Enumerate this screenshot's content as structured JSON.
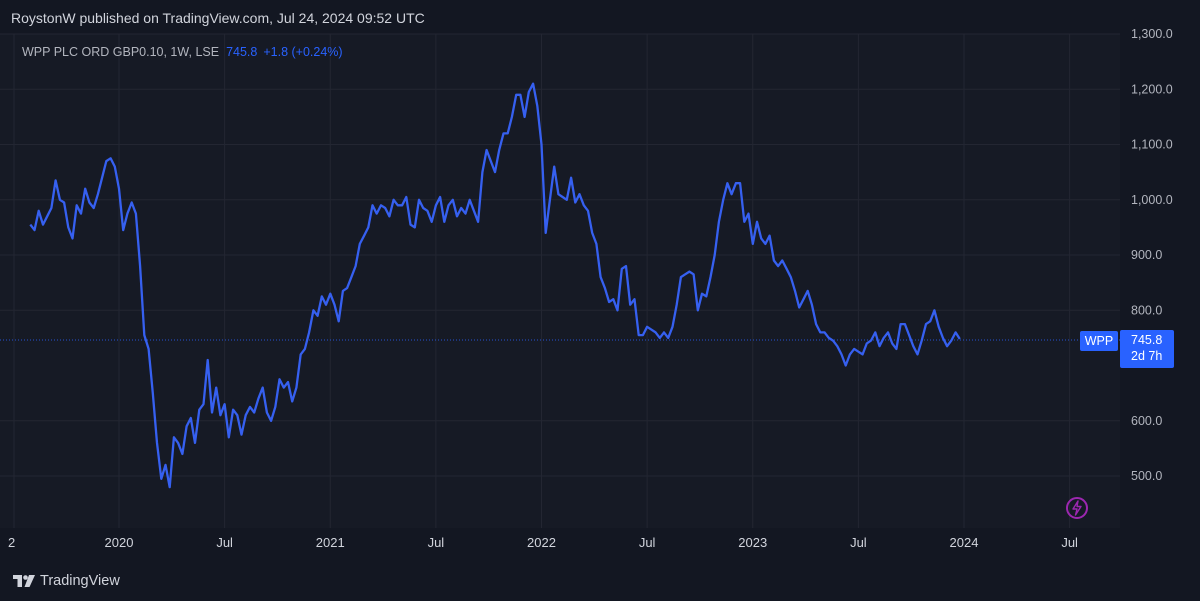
{
  "header": {
    "published_text": "RoystonW published on TradingView.com, Jul 24, 2024 09:52 UTC"
  },
  "legend": {
    "symbol_text": "WPP PLC ORD GBP0.10, 1W, LSE",
    "last_value": "745.8",
    "change_text": "+1.8 (+0.24%)"
  },
  "price_label": {
    "ticker": "WPP",
    "value": "745.8",
    "countdown": "2d 7h"
  },
  "footer": {
    "logo_text": "TradingView"
  },
  "colors": {
    "background": "#131722",
    "line": "#3660f0",
    "accent": "#2962ff"
  },
  "chart_data": {
    "type": "line",
    "ylim": [
      430,
      1300
    ],
    "y_ticks": [
      "1,300.0",
      "1,200.0",
      "1,100.0",
      "1,000.0",
      "900.0",
      "800.0",
      "600.0",
      "500.0"
    ],
    "x_ticks": [
      "2",
      "2020",
      "Jul",
      "2021",
      "Jul",
      "2022",
      "Jul",
      "2023",
      "Jul",
      "2024",
      "Jul"
    ],
    "grid": true,
    "last_price": 745.8,
    "series": [
      {
        "values": [
          [
            2019.58,
            955
          ],
          [
            2019.6,
            945
          ],
          [
            2019.62,
            980
          ],
          [
            2019.64,
            955
          ],
          [
            2019.66,
            970
          ],
          [
            2019.68,
            985
          ],
          [
            2019.7,
            1035
          ],
          [
            2019.72,
            1000
          ],
          [
            2019.74,
            995
          ],
          [
            2019.76,
            950
          ],
          [
            2019.78,
            930
          ],
          [
            2019.8,
            990
          ],
          [
            2019.82,
            975
          ],
          [
            2019.84,
            1020
          ],
          [
            2019.86,
            995
          ],
          [
            2019.88,
            985
          ],
          [
            2019.9,
            1010
          ],
          [
            2019.92,
            1040
          ],
          [
            2019.94,
            1070
          ],
          [
            2019.96,
            1075
          ],
          [
            2019.98,
            1060
          ],
          [
            2020.0,
            1020
          ],
          [
            2020.02,
            945
          ],
          [
            2020.04,
            975
          ],
          [
            2020.06,
            995
          ],
          [
            2020.08,
            975
          ],
          [
            2020.1,
            880
          ],
          [
            2020.12,
            755
          ],
          [
            2020.14,
            730
          ],
          [
            2020.16,
            650
          ],
          [
            2020.18,
            560
          ],
          [
            2020.2,
            495
          ],
          [
            2020.22,
            520
          ],
          [
            2020.24,
            480
          ],
          [
            2020.26,
            570
          ],
          [
            2020.28,
            560
          ],
          [
            2020.3,
            540
          ],
          [
            2020.32,
            590
          ],
          [
            2020.34,
            605
          ],
          [
            2020.36,
            560
          ],
          [
            2020.38,
            620
          ],
          [
            2020.4,
            630
          ],
          [
            2020.42,
            710
          ],
          [
            2020.44,
            615
          ],
          [
            2020.46,
            660
          ],
          [
            2020.48,
            610
          ],
          [
            2020.5,
            630
          ],
          [
            2020.52,
            570
          ],
          [
            2020.54,
            620
          ],
          [
            2020.56,
            610
          ],
          [
            2020.58,
            575
          ],
          [
            2020.6,
            610
          ],
          [
            2020.62,
            625
          ],
          [
            2020.64,
            615
          ],
          [
            2020.66,
            640
          ],
          [
            2020.68,
            660
          ],
          [
            2020.7,
            615
          ],
          [
            2020.72,
            600
          ],
          [
            2020.74,
            625
          ],
          [
            2020.76,
            675
          ],
          [
            2020.78,
            660
          ],
          [
            2020.8,
            670
          ],
          [
            2020.82,
            635
          ],
          [
            2020.84,
            660
          ],
          [
            2020.86,
            720
          ],
          [
            2020.88,
            730
          ],
          [
            2020.9,
            760
          ],
          [
            2020.92,
            800
          ],
          [
            2020.94,
            790
          ],
          [
            2020.96,
            825
          ],
          [
            2020.98,
            810
          ],
          [
            2021.0,
            830
          ],
          [
            2021.02,
            810
          ],
          [
            2021.04,
            780
          ],
          [
            2021.06,
            835
          ],
          [
            2021.08,
            840
          ],
          [
            2021.1,
            860
          ],
          [
            2021.12,
            880
          ],
          [
            2021.14,
            920
          ],
          [
            2021.16,
            935
          ],
          [
            2021.18,
            950
          ],
          [
            2021.2,
            990
          ],
          [
            2021.22,
            975
          ],
          [
            2021.24,
            990
          ],
          [
            2021.26,
            985
          ],
          [
            2021.28,
            970
          ],
          [
            2021.3,
            1000
          ],
          [
            2021.32,
            990
          ],
          [
            2021.34,
            990
          ],
          [
            2021.36,
            1005
          ],
          [
            2021.38,
            955
          ],
          [
            2021.4,
            950
          ],
          [
            2021.42,
            1000
          ],
          [
            2021.44,
            985
          ],
          [
            2021.46,
            980
          ],
          [
            2021.48,
            960
          ],
          [
            2021.5,
            990
          ],
          [
            2021.52,
            1005
          ],
          [
            2021.54,
            960
          ],
          [
            2021.56,
            990
          ],
          [
            2021.58,
            1000
          ],
          [
            2021.6,
            970
          ],
          [
            2021.62,
            985
          ],
          [
            2021.64,
            975
          ],
          [
            2021.66,
            1000
          ],
          [
            2021.68,
            980
          ],
          [
            2021.7,
            960
          ],
          [
            2021.72,
            1050
          ],
          [
            2021.74,
            1090
          ],
          [
            2021.76,
            1070
          ],
          [
            2021.78,
            1050
          ],
          [
            2021.8,
            1090
          ],
          [
            2021.82,
            1120
          ],
          [
            2021.84,
            1120
          ],
          [
            2021.86,
            1150
          ],
          [
            2021.88,
            1190
          ],
          [
            2021.9,
            1190
          ],
          [
            2021.92,
            1150
          ],
          [
            2021.94,
            1195
          ],
          [
            2021.96,
            1210
          ],
          [
            2021.98,
            1170
          ],
          [
            2022.0,
            1100
          ],
          [
            2022.02,
            940
          ],
          [
            2022.04,
            1000
          ],
          [
            2022.06,
            1060
          ],
          [
            2022.08,
            1010
          ],
          [
            2022.1,
            1005
          ],
          [
            2022.12,
            1000
          ],
          [
            2022.14,
            1040
          ],
          [
            2022.16,
            995
          ],
          [
            2022.18,
            1010
          ],
          [
            2022.2,
            990
          ],
          [
            2022.22,
            980
          ],
          [
            2022.24,
            940
          ],
          [
            2022.26,
            920
          ],
          [
            2022.28,
            860
          ],
          [
            2022.3,
            840
          ],
          [
            2022.32,
            815
          ],
          [
            2022.34,
            820
          ],
          [
            2022.36,
            800
          ],
          [
            2022.38,
            875
          ],
          [
            2022.4,
            880
          ],
          [
            2022.42,
            810
          ],
          [
            2022.44,
            820
          ],
          [
            2022.46,
            755
          ],
          [
            2022.48,
            755
          ],
          [
            2022.5,
            770
          ],
          [
            2022.52,
            765
          ],
          [
            2022.54,
            760
          ],
          [
            2022.56,
            750
          ],
          [
            2022.58,
            760
          ],
          [
            2022.6,
            750
          ],
          [
            2022.62,
            770
          ],
          [
            2022.64,
            810
          ],
          [
            2022.66,
            860
          ],
          [
            2022.68,
            865
          ],
          [
            2022.7,
            870
          ],
          [
            2022.72,
            865
          ],
          [
            2022.74,
            800
          ],
          [
            2022.76,
            830
          ],
          [
            2022.78,
            825
          ],
          [
            2022.8,
            860
          ],
          [
            2022.82,
            900
          ],
          [
            2022.84,
            960
          ],
          [
            2022.86,
            1000
          ],
          [
            2022.88,
            1030
          ],
          [
            2022.9,
            1010
          ],
          [
            2022.92,
            1030
          ],
          [
            2022.94,
            1030
          ],
          [
            2022.96,
            960
          ],
          [
            2022.98,
            975
          ],
          [
            2023.0,
            920
          ],
          [
            2023.02,
            960
          ],
          [
            2023.04,
            930
          ],
          [
            2023.06,
            920
          ],
          [
            2023.08,
            935
          ],
          [
            2023.1,
            890
          ],
          [
            2023.12,
            880
          ],
          [
            2023.14,
            890
          ],
          [
            2023.16,
            875
          ],
          [
            2023.18,
            860
          ],
          [
            2023.2,
            835
          ],
          [
            2023.22,
            805
          ],
          [
            2023.24,
            820
          ],
          [
            2023.26,
            835
          ],
          [
            2023.28,
            810
          ],
          [
            2023.3,
            775
          ],
          [
            2023.32,
            760
          ],
          [
            2023.34,
            760
          ],
          [
            2023.36,
            750
          ],
          [
            2023.38,
            745
          ],
          [
            2023.4,
            735
          ],
          [
            2023.42,
            720
          ],
          [
            2023.44,
            700
          ],
          [
            2023.46,
            720
          ],
          [
            2023.48,
            730
          ],
          [
            2023.5,
            725
          ],
          [
            2023.52,
            720
          ],
          [
            2023.54,
            740
          ],
          [
            2023.56,
            745
          ],
          [
            2023.58,
            760
          ],
          [
            2023.6,
            735
          ],
          [
            2023.62,
            750
          ],
          [
            2023.64,
            760
          ],
          [
            2023.66,
            740
          ],
          [
            2023.68,
            730
          ],
          [
            2023.7,
            775
          ],
          [
            2023.72,
            775
          ],
          [
            2023.74,
            755
          ],
          [
            2023.76,
            735
          ],
          [
            2023.78,
            720
          ],
          [
            2023.8,
            745
          ],
          [
            2023.82,
            775
          ],
          [
            2023.84,
            780
          ],
          [
            2023.86,
            800
          ],
          [
            2023.88,
            770
          ],
          [
            2023.9,
            750
          ],
          [
            2023.92,
            735
          ],
          [
            2023.94,
            745
          ],
          [
            2023.96,
            760
          ],
          [
            2023.98,
            748
          ]
        ]
      }
    ]
  }
}
